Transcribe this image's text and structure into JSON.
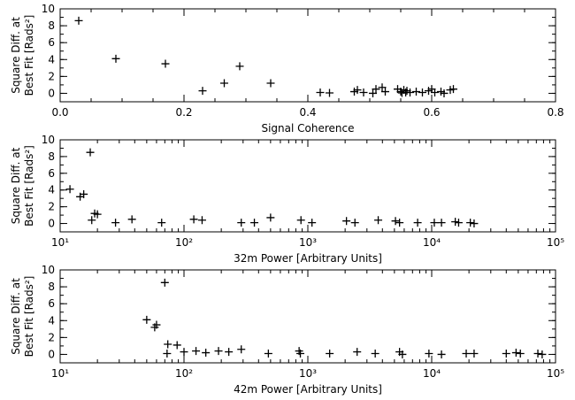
{
  "chart_data": [
    {
      "type": "scatter",
      "xlabel": "Signal Coherence",
      "ylabel_line1": "Square Diff. at",
      "ylabel_line2": "Best Fit [Rads²]",
      "xscale": "linear",
      "xlim": [
        0.0,
        0.8
      ],
      "ylim": [
        -1,
        10
      ],
      "xticks": [
        0.0,
        0.2,
        0.4,
        0.6,
        0.8
      ],
      "xtick_labels": [
        "0.0",
        "0.2",
        "0.4",
        "0.6",
        "0.8"
      ],
      "yticks": [
        0,
        2,
        4,
        6,
        8,
        10
      ],
      "ytick_labels": [
        "0",
        "2",
        "4",
        "6",
        "8",
        "10"
      ],
      "marker": "plus",
      "points": [
        {
          "x": 0.03,
          "y": 8.6
        },
        {
          "x": 0.09,
          "y": 4.1
        },
        {
          "x": 0.17,
          "y": 3.5
        },
        {
          "x": 0.23,
          "y": 0.3
        },
        {
          "x": 0.265,
          "y": 1.2
        },
        {
          "x": 0.29,
          "y": 3.2
        },
        {
          "x": 0.34,
          "y": 1.2
        },
        {
          "x": 0.42,
          "y": 0.1
        },
        {
          "x": 0.435,
          "y": 0.05
        },
        {
          "x": 0.475,
          "y": 0.2
        },
        {
          "x": 0.48,
          "y": 0.4
        },
        {
          "x": 0.49,
          "y": 0.1
        },
        {
          "x": 0.505,
          "y": 0.0
        },
        {
          "x": 0.51,
          "y": 0.5
        },
        {
          "x": 0.52,
          "y": 0.7
        },
        {
          "x": 0.525,
          "y": 0.2
        },
        {
          "x": 0.545,
          "y": 0.5
        },
        {
          "x": 0.55,
          "y": 0.2
        },
        {
          "x": 0.552,
          "y": 0.05
        },
        {
          "x": 0.555,
          "y": 0.4
        },
        {
          "x": 0.558,
          "y": 0.1
        },
        {
          "x": 0.56,
          "y": 0.3
        },
        {
          "x": 0.565,
          "y": 0.1
        },
        {
          "x": 0.575,
          "y": 0.2
        },
        {
          "x": 0.585,
          "y": 0.1
        },
        {
          "x": 0.595,
          "y": 0.3
        },
        {
          "x": 0.6,
          "y": 0.5
        },
        {
          "x": 0.605,
          "y": 0.1
        },
        {
          "x": 0.615,
          "y": 0.2
        },
        {
          "x": 0.62,
          "y": 0.0
        },
        {
          "x": 0.63,
          "y": 0.4
        },
        {
          "x": 0.635,
          "y": 0.5
        }
      ]
    },
    {
      "type": "scatter",
      "xlabel": "32m Power [Arbitrary Units]",
      "ylabel_line1": "Square Diff. at",
      "ylabel_line2": "Best Fit [Rads²]",
      "xscale": "log",
      "xlim": [
        10,
        100000
      ],
      "ylim": [
        -1,
        10
      ],
      "xticks": [
        10,
        100,
        1000,
        10000,
        100000
      ],
      "xtick_labels": [
        "10¹",
        "10²",
        "10³",
        "10⁴",
        "10⁵"
      ],
      "yticks": [
        0,
        2,
        4,
        6,
        8,
        10
      ],
      "ytick_labels": [
        "0",
        "2",
        "4",
        "6",
        "8",
        "10"
      ],
      "marker": "plus",
      "points": [
        {
          "x": 12,
          "y": 4.1
        },
        {
          "x": 14.5,
          "y": 3.2
        },
        {
          "x": 15.5,
          "y": 3.5
        },
        {
          "x": 17.5,
          "y": 8.5
        },
        {
          "x": 18,
          "y": 0.4
        },
        {
          "x": 19,
          "y": 1.2
        },
        {
          "x": 20,
          "y": 1.1
        },
        {
          "x": 28,
          "y": 0.1
        },
        {
          "x": 38,
          "y": 0.5
        },
        {
          "x": 66,
          "y": 0.1
        },
        {
          "x": 120,
          "y": 0.5
        },
        {
          "x": 140,
          "y": 0.4
        },
        {
          "x": 290,
          "y": 0.1
        },
        {
          "x": 370,
          "y": 0.1
        },
        {
          "x": 500,
          "y": 0.7
        },
        {
          "x": 880,
          "y": 0.4
        },
        {
          "x": 1080,
          "y": 0.1
        },
        {
          "x": 2050,
          "y": 0.3
        },
        {
          "x": 2400,
          "y": 0.1
        },
        {
          "x": 3700,
          "y": 0.4
        },
        {
          "x": 5100,
          "y": 0.3
        },
        {
          "x": 5500,
          "y": 0.1
        },
        {
          "x": 7700,
          "y": 0.1
        },
        {
          "x": 10500,
          "y": 0.1
        },
        {
          "x": 12000,
          "y": 0.1
        },
        {
          "x": 15500,
          "y": 0.2
        },
        {
          "x": 16500,
          "y": 0.1
        },
        {
          "x": 20500,
          "y": 0.1
        },
        {
          "x": 22000,
          "y": 0.0
        }
      ]
    },
    {
      "type": "scatter",
      "xlabel": "42m Power [Arbitrary Units]",
      "ylabel_line1": "Square Diff. at",
      "ylabel_line2": "Best Fit [Rads²]",
      "xscale": "log",
      "xlim": [
        10,
        100000
      ],
      "ylim": [
        -1,
        10
      ],
      "xticks": [
        10,
        100,
        1000,
        10000,
        100000
      ],
      "xtick_labels": [
        "10¹",
        "10²",
        "10³",
        "10⁴",
        "10⁵"
      ],
      "yticks": [
        0,
        2,
        4,
        6,
        8,
        10
      ],
      "ytick_labels": [
        "0",
        "2",
        "4",
        "6",
        "8",
        "10"
      ],
      "marker": "plus",
      "points": [
        {
          "x": 50,
          "y": 4.1
        },
        {
          "x": 58,
          "y": 3.2
        },
        {
          "x": 60,
          "y": 3.5
        },
        {
          "x": 70,
          "y": 8.5
        },
        {
          "x": 73,
          "y": 0.1
        },
        {
          "x": 74,
          "y": 1.2
        },
        {
          "x": 88,
          "y": 1.1
        },
        {
          "x": 100,
          "y": 0.3
        },
        {
          "x": 125,
          "y": 0.4
        },
        {
          "x": 150,
          "y": 0.2
        },
        {
          "x": 190,
          "y": 0.4
        },
        {
          "x": 230,
          "y": 0.3
        },
        {
          "x": 290,
          "y": 0.6
        },
        {
          "x": 480,
          "y": 0.1
        },
        {
          "x": 850,
          "y": 0.4
        },
        {
          "x": 870,
          "y": 0.1
        },
        {
          "x": 1500,
          "y": 0.1
        },
        {
          "x": 2500,
          "y": 0.3
        },
        {
          "x": 3500,
          "y": 0.1
        },
        {
          "x": 5500,
          "y": 0.3
        },
        {
          "x": 5800,
          "y": 0.0
        },
        {
          "x": 9500,
          "y": 0.1
        },
        {
          "x": 12000,
          "y": 0.0
        },
        {
          "x": 19000,
          "y": 0.1
        },
        {
          "x": 22000,
          "y": 0.1
        },
        {
          "x": 40000,
          "y": 0.1
        },
        {
          "x": 48000,
          "y": 0.2
        },
        {
          "x": 52000,
          "y": 0.1
        },
        {
          "x": 72000,
          "y": 0.1
        },
        {
          "x": 78000,
          "y": 0.0
        }
      ]
    }
  ]
}
